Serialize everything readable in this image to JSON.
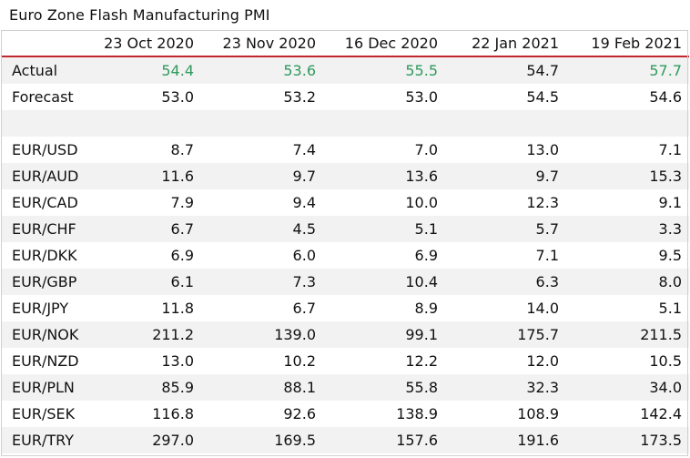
{
  "title": "Euro Zone Flash Manufacturing PMI",
  "chart_data": {
    "type": "table",
    "title": "Euro Zone Flash Manufacturing PMI",
    "columns": [
      "",
      "23 Oct 2020",
      "23 Nov 2020",
      "16 Dec 2020",
      "22 Jan 2021",
      "19 Feb 2021"
    ],
    "rows": [
      {
        "label": "Actual",
        "values": [
          "54.4",
          "53.6",
          "55.5",
          "54.7",
          "57.7"
        ],
        "highlight": [
          true,
          true,
          true,
          false,
          true
        ]
      },
      {
        "label": "Forecast",
        "values": [
          "53.0",
          "53.2",
          "53.0",
          "54.5",
          "54.6"
        ],
        "highlight": [
          false,
          false,
          false,
          false,
          false
        ]
      },
      {
        "label": "",
        "values": [
          "",
          "",
          "",
          "",
          ""
        ],
        "highlight": [
          false,
          false,
          false,
          false,
          false
        ]
      },
      {
        "label": "EUR/USD",
        "values": [
          "8.7",
          "7.4",
          "7.0",
          "13.0",
          "7.1"
        ],
        "highlight": [
          false,
          false,
          false,
          false,
          false
        ]
      },
      {
        "label": "EUR/AUD",
        "values": [
          "11.6",
          "9.7",
          "13.6",
          "9.7",
          "15.3"
        ],
        "highlight": [
          false,
          false,
          false,
          false,
          false
        ]
      },
      {
        "label": "EUR/CAD",
        "values": [
          "7.9",
          "9.4",
          "10.0",
          "12.3",
          "9.1"
        ],
        "highlight": [
          false,
          false,
          false,
          false,
          false
        ]
      },
      {
        "label": "EUR/CHF",
        "values": [
          "6.7",
          "4.5",
          "5.1",
          "5.7",
          "3.3"
        ],
        "highlight": [
          false,
          false,
          false,
          false,
          false
        ]
      },
      {
        "label": "EUR/DKK",
        "values": [
          "6.9",
          "6.0",
          "6.9",
          "7.1",
          "9.5"
        ],
        "highlight": [
          false,
          false,
          false,
          false,
          false
        ]
      },
      {
        "label": "EUR/GBP",
        "values": [
          "6.1",
          "7.3",
          "10.4",
          "6.3",
          "8.0"
        ],
        "highlight": [
          false,
          false,
          false,
          false,
          false
        ]
      },
      {
        "label": "EUR/JPY",
        "values": [
          "11.8",
          "6.7",
          "8.9",
          "14.0",
          "5.1"
        ],
        "highlight": [
          false,
          false,
          false,
          false,
          false
        ]
      },
      {
        "label": "EUR/NOK",
        "values": [
          "211.2",
          "139.0",
          "99.1",
          "175.7",
          "211.5"
        ],
        "highlight": [
          false,
          false,
          false,
          false,
          false
        ]
      },
      {
        "label": "EUR/NZD",
        "values": [
          "13.0",
          "10.2",
          "12.2",
          "12.0",
          "10.5"
        ],
        "highlight": [
          false,
          false,
          false,
          false,
          false
        ]
      },
      {
        "label": "EUR/PLN",
        "values": [
          "85.9",
          "88.1",
          "55.8",
          "32.3",
          "34.0"
        ],
        "highlight": [
          false,
          false,
          false,
          false,
          false
        ]
      },
      {
        "label": "EUR/SEK",
        "values": [
          "116.8",
          "92.6",
          "138.9",
          "108.9",
          "142.4"
        ],
        "highlight": [
          false,
          false,
          false,
          false,
          false
        ]
      },
      {
        "label": "EUR/TRY",
        "values": [
          "297.0",
          "169.5",
          "157.6",
          "191.6",
          "173.5"
        ],
        "highlight": [
          false,
          false,
          false,
          false,
          false
        ]
      }
    ]
  },
  "colors": {
    "header_rule": "#c0282d",
    "highlight_text": "#2e9a5e",
    "stripe": "#f2f2f2"
  }
}
